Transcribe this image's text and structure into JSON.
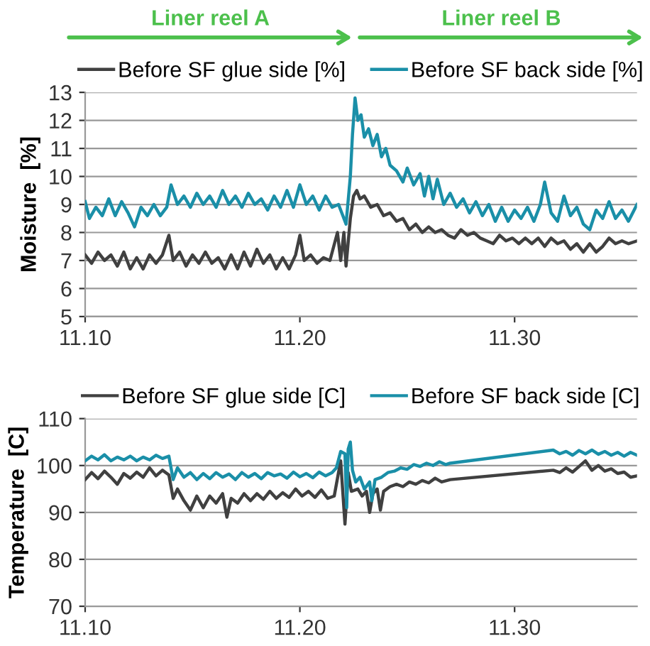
{
  "chart_data": [
    {
      "type": "line",
      "ylabel": "Moisture  [%]",
      "annotations": [
        "Liner reel A",
        "Liner reel B"
      ],
      "xlim": [
        11.1,
        11.357
      ],
      "xticks": [
        {
          "value": 11.1,
          "label": "11.10"
        },
        {
          "value": 11.2,
          "label": "11.20"
        },
        {
          "value": 11.3,
          "label": "11.30"
        }
      ],
      "ylim": [
        5,
        13
      ],
      "yticks": [
        5,
        6,
        7,
        8,
        9,
        10,
        11,
        12,
        13
      ],
      "grid": "y",
      "legend": "top",
      "series": [
        {
          "name": "Before SF glue side [%]",
          "color": "#404040",
          "x": [
            11.1,
            11.103,
            11.106,
            11.109,
            11.112,
            11.115,
            11.118,
            11.121,
            11.124,
            11.127,
            11.13,
            11.133,
            11.136,
            11.139,
            11.141,
            11.144,
            11.147,
            11.15,
            11.153,
            11.156,
            11.159,
            11.162,
            11.165,
            11.168,
            11.171,
            11.174,
            11.177,
            11.18,
            11.183,
            11.186,
            11.189,
            11.192,
            11.195,
            11.198,
            11.2,
            11.202,
            11.205,
            11.208,
            11.211,
            11.214,
            11.2175,
            11.219,
            11.2205,
            11.2215,
            11.2235,
            11.225,
            11.2265,
            11.228,
            11.23,
            11.233,
            11.236,
            11.239,
            11.242,
            11.245,
            11.248,
            11.251,
            11.254,
            11.257,
            11.26,
            11.263,
            11.266,
            11.269,
            11.272,
            11.275,
            11.278,
            11.281,
            11.284,
            11.287,
            11.29,
            11.293,
            11.296,
            11.299,
            11.302,
            11.305,
            11.308,
            11.311,
            11.314,
            11.317,
            11.32,
            11.323,
            11.326,
            11.329,
            11.332,
            11.335,
            11.338,
            11.341,
            11.344,
            11.347,
            11.35,
            11.353,
            11.357
          ],
          "values": [
            7.2,
            6.9,
            7.3,
            7.0,
            7.2,
            6.8,
            7.3,
            6.7,
            7.1,
            6.7,
            7.2,
            6.9,
            7.2,
            7.9,
            7.0,
            7.3,
            6.8,
            7.2,
            6.9,
            7.3,
            6.9,
            7.1,
            6.7,
            7.2,
            6.7,
            7.3,
            6.8,
            7.4,
            6.9,
            7.2,
            6.7,
            7.1,
            6.7,
            7.2,
            7.9,
            7.0,
            7.2,
            6.9,
            7.1,
            7.0,
            8.0,
            7.0,
            8.0,
            6.8,
            8.5,
            9.3,
            9.5,
            9.2,
            9.3,
            8.9,
            9.0,
            8.6,
            8.7,
            8.4,
            8.5,
            8.1,
            8.3,
            8.0,
            8.2,
            8.0,
            8.1,
            7.9,
            7.8,
            8.1,
            7.9,
            8.0,
            7.8,
            7.7,
            7.6,
            7.9,
            7.7,
            7.8,
            7.6,
            7.8,
            7.6,
            7.8,
            7.5,
            7.8,
            7.6,
            7.7,
            7.4,
            7.6,
            7.3,
            7.6,
            7.3,
            7.5,
            7.8,
            7.6,
            7.7,
            7.6,
            7.7
          ]
        },
        {
          "name": "Before SF back side [%]",
          "color": "#1a8fa8",
          "x": [
            11.1,
            11.102,
            11.105,
            11.108,
            11.111,
            11.114,
            11.117,
            11.12,
            11.123,
            11.126,
            11.129,
            11.132,
            11.135,
            11.138,
            11.14,
            11.143,
            11.146,
            11.149,
            11.152,
            11.155,
            11.158,
            11.161,
            11.164,
            11.167,
            11.17,
            11.173,
            11.176,
            11.179,
            11.182,
            11.185,
            11.188,
            11.191,
            11.194,
            11.197,
            11.2,
            11.203,
            11.206,
            11.209,
            11.212,
            11.215,
            11.218,
            11.22,
            11.2215,
            11.2235,
            11.2245,
            11.2257,
            11.227,
            11.2285,
            11.23,
            11.232,
            11.234,
            11.236,
            11.238,
            11.24,
            11.242,
            11.245,
            11.248,
            11.25,
            11.253,
            11.256,
            11.258,
            11.26,
            11.262,
            11.264,
            11.267,
            11.27,
            11.273,
            11.276,
            11.279,
            11.282,
            11.285,
            11.288,
            11.291,
            11.294,
            11.297,
            11.3,
            11.303,
            11.306,
            11.309,
            11.312,
            11.314,
            11.317,
            11.32,
            11.323,
            11.326,
            11.329,
            11.332,
            11.335,
            11.338,
            11.341,
            11.344,
            11.347,
            11.35,
            11.353,
            11.357
          ],
          "values": [
            9.1,
            8.5,
            8.9,
            8.6,
            9.2,
            8.6,
            9.1,
            8.7,
            8.2,
            8.9,
            8.6,
            9.0,
            8.6,
            8.9,
            9.7,
            9.0,
            9.3,
            8.9,
            9.4,
            9.0,
            9.3,
            8.9,
            9.5,
            9.0,
            9.3,
            8.9,
            9.4,
            9.0,
            9.2,
            8.8,
            9.3,
            8.9,
            9.5,
            8.9,
            9.7,
            9.0,
            9.3,
            8.8,
            9.3,
            8.9,
            9.0,
            8.6,
            8.3,
            10.0,
            11.5,
            12.8,
            12.0,
            12.2,
            11.4,
            11.7,
            11.1,
            11.5,
            10.7,
            11.0,
            10.4,
            10.2,
            9.8,
            10.3,
            9.7,
            10.1,
            9.3,
            10.0,
            9.2,
            9.9,
            9.0,
            9.4,
            8.9,
            9.2,
            8.7,
            9.1,
            8.6,
            9.0,
            8.4,
            8.9,
            8.4,
            8.8,
            8.5,
            8.9,
            8.4,
            9.0,
            9.8,
            8.7,
            8.4,
            9.3,
            8.6,
            8.9,
            8.3,
            8.1,
            8.8,
            8.5,
            9.1,
            8.5,
            8.8,
            8.4,
            9.0
          ]
        }
      ]
    },
    {
      "type": "line",
      "ylabel": "Temperature  [C]",
      "xlim": [
        11.1,
        11.357
      ],
      "xticks": [
        {
          "value": 11.1,
          "label": "11.10"
        },
        {
          "value": 11.2,
          "label": "11.20"
        },
        {
          "value": 11.3,
          "label": "11.30"
        }
      ],
      "ylim": [
        70,
        110
      ],
      "yticks": [
        70,
        80,
        90,
        100,
        110
      ],
      "grid": "y",
      "legend": "top",
      "series": [
        {
          "name": "Before SF glue side [C]",
          "color": "#404040",
          "x": [
            11.1,
            11.103,
            11.106,
            11.109,
            11.112,
            11.115,
            11.118,
            11.121,
            11.124,
            11.127,
            11.13,
            11.133,
            11.136,
            11.139,
            11.141,
            11.143,
            11.146,
            11.149,
            11.152,
            11.155,
            11.158,
            11.161,
            11.164,
            11.166,
            11.168,
            11.171,
            11.174,
            11.177,
            11.18,
            11.183,
            11.186,
            11.189,
            11.192,
            11.195,
            11.198,
            11.201,
            11.204,
            11.207,
            11.21,
            11.213,
            11.216,
            11.219,
            11.221,
            11.2225,
            11.224,
            11.227,
            11.229,
            11.231,
            11.2325,
            11.234,
            11.236,
            11.2375,
            11.239,
            11.242,
            11.245,
            11.248,
            11.251,
            11.254,
            11.257,
            11.26,
            11.263,
            11.266,
            11.27,
            11.318,
            11.321,
            11.324,
            11.327,
            11.33,
            11.333,
            11.336,
            11.339,
            11.342,
            11.345,
            11.348,
            11.351,
            11.354,
            11.357
          ],
          "values": [
            97.0,
            98.5,
            97.2,
            98.8,
            97.5,
            96.0,
            98.3,
            97.3,
            98.6,
            97.5,
            99.5,
            97.8,
            99.0,
            98.0,
            93.0,
            95.0,
            92.5,
            90.5,
            93.5,
            91.0,
            93.5,
            92.0,
            94.0,
            89.0,
            93.0,
            92.0,
            94.0,
            92.5,
            94.0,
            92.8,
            94.5,
            93.0,
            94.2,
            93.2,
            95.0,
            93.5,
            94.5,
            93.2,
            94.8,
            93.0,
            93.5,
            101.0,
            87.5,
            98.5,
            94.5,
            95.0,
            93.5,
            94.5,
            90.0,
            94.0,
            95.0,
            90.5,
            94.5,
            95.5,
            96.0,
            95.5,
            96.5,
            96.0,
            96.8,
            96.3,
            97.3,
            96.5,
            97.0,
            99.0,
            98.5,
            99.5,
            98.6,
            99.8,
            101.0,
            99.0,
            100.0,
            98.8,
            99.3,
            98.3,
            98.6,
            97.5,
            97.8
          ]
        },
        {
          "name": "Before SF back side [C]",
          "color": "#1a8fa8",
          "x": [
            11.1,
            11.103,
            11.106,
            11.109,
            11.112,
            11.115,
            11.118,
            11.121,
            11.124,
            11.127,
            11.13,
            11.133,
            11.136,
            11.139,
            11.141,
            11.143,
            11.146,
            11.149,
            11.152,
            11.155,
            11.158,
            11.161,
            11.164,
            11.167,
            11.17,
            11.173,
            11.176,
            11.179,
            11.182,
            11.185,
            11.188,
            11.191,
            11.194,
            11.197,
            11.2,
            11.203,
            11.206,
            11.209,
            11.212,
            11.215,
            11.217,
            11.219,
            11.221,
            11.2218,
            11.2225,
            11.2235,
            11.2245,
            11.226,
            11.228,
            11.23,
            11.2325,
            11.2335,
            11.235,
            11.238,
            11.241,
            11.244,
            11.247,
            11.25,
            11.253,
            11.256,
            11.259,
            11.262,
            11.265,
            11.268,
            11.27,
            11.318,
            11.321,
            11.324,
            11.327,
            11.33,
            11.333,
            11.336,
            11.339,
            11.342,
            11.345,
            11.348,
            11.351,
            11.354,
            11.357
          ],
          "values": [
            101.0,
            102.0,
            101.2,
            102.3,
            101.0,
            101.8,
            101.2,
            102.0,
            101.0,
            101.8,
            101.2,
            102.2,
            101.5,
            102.0,
            97.0,
            99.5,
            97.5,
            98.5,
            97.0,
            98.3,
            97.2,
            98.5,
            97.5,
            98.2,
            97.0,
            98.5,
            97.5,
            98.3,
            97.2,
            98.5,
            97.8,
            98.2,
            97.3,
            98.6,
            97.6,
            98.3,
            97.4,
            98.6,
            97.8,
            98.5,
            99.5,
            103.0,
            102.5,
            91.0,
            103.5,
            105.0,
            99.0,
            96.5,
            97.5,
            95.0,
            96.5,
            92.5,
            97.0,
            97.5,
            98.5,
            98.8,
            99.5,
            99.2,
            100.2,
            99.8,
            100.5,
            100.0,
            100.8,
            100.2,
            100.5,
            103.3,
            102.5,
            103.0,
            102.2,
            103.2,
            102.5,
            103.3,
            102.4,
            103.0,
            102.2,
            102.8,
            102.0,
            102.8,
            102.2
          ]
        }
      ]
    }
  ]
}
